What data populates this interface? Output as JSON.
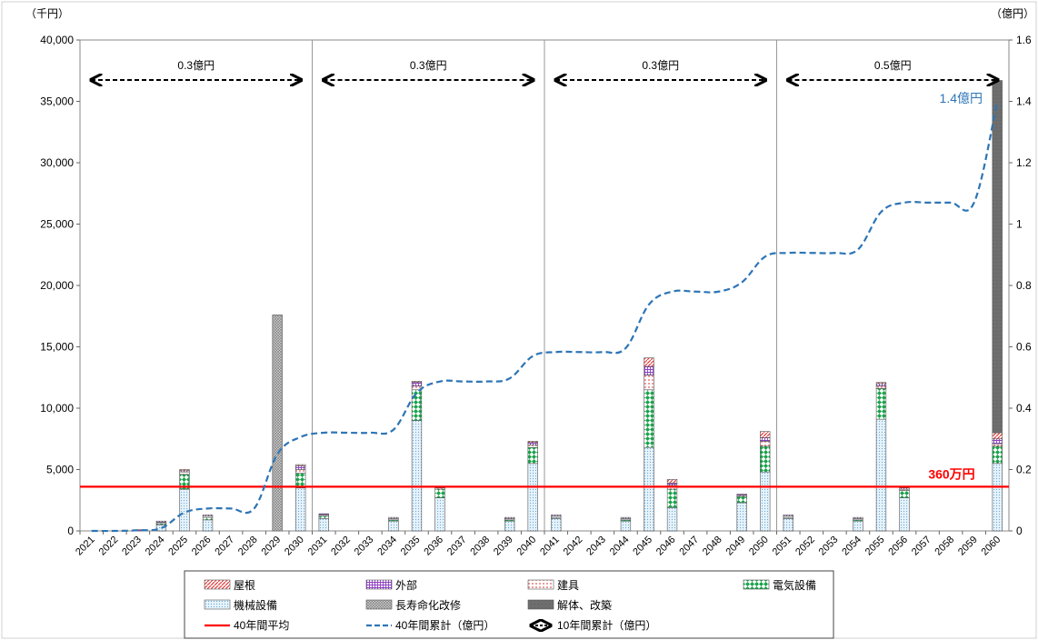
{
  "chart_data": {
    "type": "bar",
    "stacked": true,
    "y_unit_left": "（千円）",
    "y_unit_right": "（億円）",
    "ylim_left": [
      0,
      40000
    ],
    "ylim_right": [
      0,
      1.6
    ],
    "yticks_left": [
      "0",
      "5,000",
      "10,000",
      "15,000",
      "20,000",
      "25,000",
      "30,000",
      "35,000",
      "40,000"
    ],
    "yticks_right": [
      "0",
      "0.2",
      "0.4",
      "0.6",
      "0.8",
      "1",
      "1.2",
      "1.4",
      "1.6"
    ],
    "categories": [
      "2021",
      "2022",
      "2023",
      "2024",
      "2025",
      "2026",
      "2027",
      "2028",
      "2029",
      "2030",
      "2031",
      "2032",
      "2033",
      "2034",
      "2035",
      "2036",
      "2037",
      "2038",
      "2039",
      "2040",
      "2041",
      "2042",
      "2043",
      "2044",
      "2045",
      "2046",
      "2047",
      "2048",
      "2049",
      "2050",
      "2051",
      "2052",
      "2053",
      "2054",
      "2055",
      "2056",
      "2057",
      "2058",
      "2059",
      "2060"
    ],
    "series": [
      {
        "name": "機械設備",
        "color": "#d6ecf8",
        "values": [
          0,
          0,
          0,
          500,
          3400,
          900,
          0,
          0,
          0,
          3500,
          1000,
          0,
          0,
          800,
          9000,
          2700,
          0,
          0,
          800,
          5500,
          1000,
          0,
          0,
          800,
          6800,
          1900,
          0,
          0,
          2300,
          4800,
          1000,
          0,
          0,
          800,
          9100,
          2700,
          0,
          0,
          0,
          5500
        ]
      },
      {
        "name": "電気設備",
        "color": "#22aa55",
        "values": [
          0,
          0,
          0,
          100,
          1200,
          200,
          0,
          0,
          0,
          1200,
          200,
          0,
          0,
          100,
          2500,
          700,
          0,
          0,
          100,
          1300,
          100,
          0,
          0,
          100,
          4700,
          1500,
          0,
          0,
          500,
          2100,
          100,
          0,
          0,
          100,
          2500,
          600,
          0,
          0,
          0,
          1400
        ]
      },
      {
        "name": "建具",
        "color": "#ffe8e8",
        "values": [
          0,
          0,
          0,
          100,
          200,
          100,
          0,
          0,
          0,
          300,
          100,
          0,
          0,
          100,
          300,
          100,
          0,
          0,
          100,
          200,
          100,
          0,
          0,
          100,
          1200,
          300,
          0,
          0,
          100,
          400,
          100,
          0,
          0,
          100,
          200,
          100,
          0,
          0,
          0,
          200
        ]
      },
      {
        "name": "外部",
        "color": "#9b59c9",
        "values": [
          0,
          0,
          100,
          100,
          100,
          100,
          0,
          0,
          0,
          300,
          100,
          0,
          0,
          100,
          300,
          100,
          0,
          0,
          100,
          200,
          100,
          0,
          0,
          100,
          700,
          200,
          0,
          0,
          100,
          300,
          100,
          0,
          0,
          100,
          200,
          100,
          0,
          0,
          0,
          400
        ]
      },
      {
        "name": "屋根",
        "color": "#ee4444",
        "values": [
          0,
          0,
          0,
          0,
          100,
          0,
          0,
          0,
          0,
          100,
          0,
          0,
          0,
          0,
          100,
          0,
          0,
          0,
          0,
          100,
          0,
          0,
          0,
          0,
          700,
          300,
          0,
          0,
          0,
          500,
          0,
          0,
          0,
          0,
          100,
          0,
          0,
          0,
          0,
          500
        ]
      },
      {
        "name": "長寿命化改修",
        "color": "#aaaaaa",
        "values": [
          0,
          0,
          0,
          0,
          0,
          0,
          0,
          0,
          17600,
          0,
          0,
          0,
          0,
          0,
          0,
          0,
          0,
          0,
          0,
          0,
          0,
          0,
          0,
          0,
          0,
          0,
          0,
          0,
          0,
          0,
          0,
          0,
          0,
          0,
          0,
          0,
          0,
          0,
          0,
          0
        ]
      },
      {
        "name": "解体、改築",
        "color": "#666666",
        "values": [
          0,
          0,
          0,
          0,
          0,
          0,
          0,
          0,
          0,
          0,
          0,
          0,
          0,
          0,
          0,
          0,
          0,
          0,
          0,
          0,
          0,
          0,
          0,
          0,
          0,
          0,
          0,
          0,
          0,
          0,
          0,
          0,
          0,
          0,
          0,
          0,
          0,
          0,
          0,
          28700
        ]
      }
    ],
    "cumulative_line": {
      "name": "40年間累計（億円）",
      "color": "#2e75b6",
      "values": [
        0,
        0,
        0.002,
        0.009,
        0.06,
        0.073,
        0.073,
        0.073,
        0.25,
        0.306,
        0.32,
        0.32,
        0.32,
        0.33,
        0.45,
        0.487,
        0.487,
        0.487,
        0.497,
        0.57,
        0.583,
        0.583,
        0.583,
        0.596,
        0.738,
        0.78,
        0.78,
        0.78,
        0.81,
        0.894,
        0.906,
        0.906,
        0.906,
        0.917,
        1.04,
        1.07,
        1.07,
        1.07,
        1.07,
        1.4
      ]
    },
    "average_line": {
      "name": "40年間平均",
      "value": 3600,
      "label": "360万円",
      "color": "#ff0000"
    },
    "decade_arrows": {
      "name": "10年間累計（億円）",
      "items": [
        {
          "from": "2021",
          "to": "2030",
          "label": "0.3億円"
        },
        {
          "from": "2031",
          "to": "2040",
          "label": "0.3億円"
        },
        {
          "from": "2041",
          "to": "2050",
          "label": "0.3億円"
        },
        {
          "from": "2051",
          "to": "2060",
          "label": "0.5億円"
        }
      ]
    },
    "end_label": "1.4億円",
    "legend": {
      "placement": "bottom",
      "items": [
        {
          "label": "屋根",
          "pattern": "roof"
        },
        {
          "label": "外部",
          "pattern": "ext"
        },
        {
          "label": "建具",
          "pattern": "fit"
        },
        {
          "label": "電気設備",
          "pattern": "elec"
        },
        {
          "label": "機械設備",
          "pattern": "mech"
        },
        {
          "label": "長寿命化改修",
          "pattern": "life"
        },
        {
          "label": "解体、改築",
          "pattern": "demo"
        },
        {
          "label": "40年間平均",
          "pattern": "avgline"
        },
        {
          "label": "40年間累計（億円）",
          "pattern": "cumline"
        },
        {
          "label": "10年間累計（億円）",
          "pattern": "arrow"
        }
      ]
    }
  }
}
